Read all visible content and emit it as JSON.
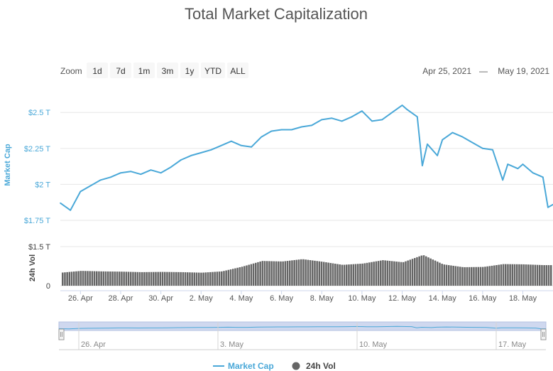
{
  "chart_data": {
    "type": "line",
    "title": "Total Market Capitalization",
    "range_selector": {
      "zoom_label": "Zoom",
      "buttons": [
        "1d",
        "7d",
        "1m",
        "3m",
        "1y",
        "YTD",
        "ALL"
      ],
      "date_from": "Apr 25, 2021",
      "date_separator": "—",
      "date_to": "May 19, 2021"
    },
    "x_range": [
      "2021-04-25",
      "2021-05-19"
    ],
    "x_tick_labels": [
      "26. Apr",
      "28. Apr",
      "30. Apr",
      "2. May",
      "4. May",
      "6. May",
      "8. May",
      "10. May",
      "12. May",
      "14. May",
      "16. May",
      "18. May"
    ],
    "navigator_tick_labels": [
      "26. Apr",
      "3. May",
      "10. May",
      "17. May"
    ],
    "market_cap_axis": {
      "label": "Market Cap",
      "unit": "T USD",
      "range": [
        1.75,
        2.6
      ],
      "ticks": [
        1.75,
        2.0,
        2.25,
        2.5
      ],
      "tick_labels": [
        "$1.75 T",
        "$2 T",
        "$2.25 T",
        "$2.5 T"
      ]
    },
    "volume_axis": {
      "label": "24h Vol",
      "unit": "T USD",
      "range": [
        0,
        1.5
      ],
      "ticks": [
        0,
        1.5
      ],
      "tick_labels": [
        "0",
        "$1.5 T"
      ]
    },
    "grid": true,
    "legend_position": "bottom-center",
    "series": [
      {
        "name": "Market Cap",
        "kind": "line",
        "color": "#4aa8d8",
        "points": [
          [
            "2021-04-25",
            1.87
          ],
          [
            "2021-04-25T12",
            1.82
          ],
          [
            "2021-04-26",
            1.95
          ],
          [
            "2021-04-26T12",
            1.99
          ],
          [
            "2021-04-27",
            2.03
          ],
          [
            "2021-04-27T12",
            2.05
          ],
          [
            "2021-04-28",
            2.08
          ],
          [
            "2021-04-28T12",
            2.09
          ],
          [
            "2021-04-29",
            2.07
          ],
          [
            "2021-04-29T12",
            2.1
          ],
          [
            "2021-04-30",
            2.08
          ],
          [
            "2021-04-30T12",
            2.12
          ],
          [
            "2021-05-01",
            2.17
          ],
          [
            "2021-05-01T12",
            2.2
          ],
          [
            "2021-05-02",
            2.22
          ],
          [
            "2021-05-02T12",
            2.24
          ],
          [
            "2021-05-03",
            2.27
          ],
          [
            "2021-05-03T12",
            2.3
          ],
          [
            "2021-05-04",
            2.27
          ],
          [
            "2021-05-04T12",
            2.26
          ],
          [
            "2021-05-05",
            2.33
          ],
          [
            "2021-05-05T12",
            2.37
          ],
          [
            "2021-05-06",
            2.38
          ],
          [
            "2021-05-06T12",
            2.38
          ],
          [
            "2021-05-07",
            2.4
          ],
          [
            "2021-05-07T12",
            2.41
          ],
          [
            "2021-05-08",
            2.45
          ],
          [
            "2021-05-08T12",
            2.46
          ],
          [
            "2021-05-09",
            2.44
          ],
          [
            "2021-05-09T12",
            2.47
          ],
          [
            "2021-05-10",
            2.51
          ],
          [
            "2021-05-10T12",
            2.44
          ],
          [
            "2021-05-11",
            2.45
          ],
          [
            "2021-05-11T12",
            2.5
          ],
          [
            "2021-05-12",
            2.55
          ],
          [
            "2021-05-12T06",
            2.52
          ],
          [
            "2021-05-12T18",
            2.47
          ],
          [
            "2021-05-13",
            2.13
          ],
          [
            "2021-05-13T06",
            2.28
          ],
          [
            "2021-05-13T18",
            2.2
          ],
          [
            "2021-05-14",
            2.31
          ],
          [
            "2021-05-14T12",
            2.36
          ],
          [
            "2021-05-15",
            2.33
          ],
          [
            "2021-05-15T12",
            2.29
          ],
          [
            "2021-05-16",
            2.25
          ],
          [
            "2021-05-16T12",
            2.24
          ],
          [
            "2021-05-17",
            2.03
          ],
          [
            "2021-05-17T06",
            2.14
          ],
          [
            "2021-05-17T18",
            2.11
          ],
          [
            "2021-05-18",
            2.14
          ],
          [
            "2021-05-18T12",
            2.08
          ],
          [
            "2021-05-19",
            2.05
          ],
          [
            "2021-05-19T06",
            1.84
          ],
          [
            "2021-05-19T12",
            1.86
          ]
        ]
      },
      {
        "name": "24h Vol",
        "kind": "column",
        "color": "#666666",
        "points": [
          [
            "2021-04-25",
            0.5
          ],
          [
            "2021-04-26",
            0.57
          ],
          [
            "2021-04-27",
            0.55
          ],
          [
            "2021-04-28",
            0.54
          ],
          [
            "2021-04-29",
            0.52
          ],
          [
            "2021-04-30",
            0.53
          ],
          [
            "2021-05-01",
            0.52
          ],
          [
            "2021-05-02",
            0.5
          ],
          [
            "2021-05-03",
            0.55
          ],
          [
            "2021-05-04",
            0.73
          ],
          [
            "2021-05-05",
            0.95
          ],
          [
            "2021-05-06",
            0.93
          ],
          [
            "2021-05-07",
            1.02
          ],
          [
            "2021-05-08",
            0.92
          ],
          [
            "2021-05-09",
            0.8
          ],
          [
            "2021-05-10",
            0.85
          ],
          [
            "2021-05-11",
            0.98
          ],
          [
            "2021-05-12",
            0.9
          ],
          [
            "2021-05-13",
            1.18
          ],
          [
            "2021-05-14",
            0.82
          ],
          [
            "2021-05-15",
            0.71
          ],
          [
            "2021-05-16",
            0.72
          ],
          [
            "2021-05-17",
            0.83
          ],
          [
            "2021-05-18",
            0.82
          ],
          [
            "2021-05-19",
            0.79
          ]
        ]
      }
    ]
  }
}
